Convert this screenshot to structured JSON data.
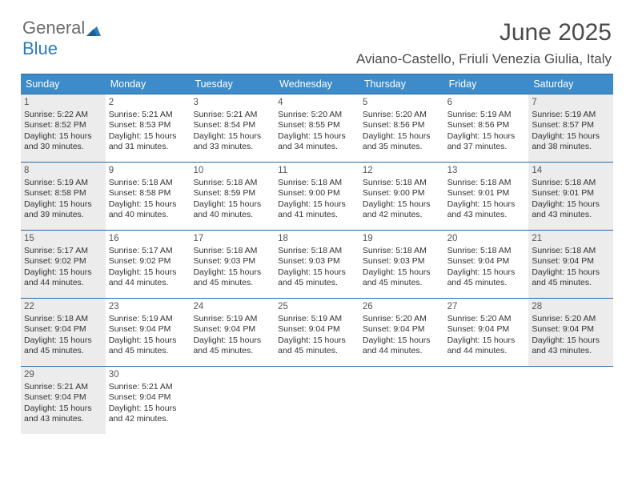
{
  "logo": {
    "text1": "General",
    "text2": "Blue"
  },
  "title": "June 2025",
  "subtitle": "Aviano-Castello, Friuli Venezia Giulia, Italy",
  "colors": {
    "header_bg": "#3d8bc8",
    "header_border": "#2a6aa0",
    "shaded_bg": "#ececec",
    "text_dark": "#333333",
    "title_color": "#4a4a4a",
    "logo_gray": "#6c6c6c",
    "logo_blue": "#2b7bbf"
  },
  "day_headers": [
    "Sunday",
    "Monday",
    "Tuesday",
    "Wednesday",
    "Thursday",
    "Friday",
    "Saturday"
  ],
  "weeks": [
    [
      {
        "n": "1",
        "shaded": true,
        "sr": "5:22 AM",
        "ss": "8:52 PM",
        "dl": "15 hours and 30 minutes."
      },
      {
        "n": "2",
        "shaded": false,
        "sr": "5:21 AM",
        "ss": "8:53 PM",
        "dl": "15 hours and 31 minutes."
      },
      {
        "n": "3",
        "shaded": false,
        "sr": "5:21 AM",
        "ss": "8:54 PM",
        "dl": "15 hours and 33 minutes."
      },
      {
        "n": "4",
        "shaded": false,
        "sr": "5:20 AM",
        "ss": "8:55 PM",
        "dl": "15 hours and 34 minutes."
      },
      {
        "n": "5",
        "shaded": false,
        "sr": "5:20 AM",
        "ss": "8:56 PM",
        "dl": "15 hours and 35 minutes."
      },
      {
        "n": "6",
        "shaded": false,
        "sr": "5:19 AM",
        "ss": "8:56 PM",
        "dl": "15 hours and 37 minutes."
      },
      {
        "n": "7",
        "shaded": true,
        "sr": "5:19 AM",
        "ss": "8:57 PM",
        "dl": "15 hours and 38 minutes."
      }
    ],
    [
      {
        "n": "8",
        "shaded": true,
        "sr": "5:19 AM",
        "ss": "8:58 PM",
        "dl": "15 hours and 39 minutes."
      },
      {
        "n": "9",
        "shaded": false,
        "sr": "5:18 AM",
        "ss": "8:58 PM",
        "dl": "15 hours and 40 minutes."
      },
      {
        "n": "10",
        "shaded": false,
        "sr": "5:18 AM",
        "ss": "8:59 PM",
        "dl": "15 hours and 40 minutes."
      },
      {
        "n": "11",
        "shaded": false,
        "sr": "5:18 AM",
        "ss": "9:00 PM",
        "dl": "15 hours and 41 minutes."
      },
      {
        "n": "12",
        "shaded": false,
        "sr": "5:18 AM",
        "ss": "9:00 PM",
        "dl": "15 hours and 42 minutes."
      },
      {
        "n": "13",
        "shaded": false,
        "sr": "5:18 AM",
        "ss": "9:01 PM",
        "dl": "15 hours and 43 minutes."
      },
      {
        "n": "14",
        "shaded": true,
        "sr": "5:18 AM",
        "ss": "9:01 PM",
        "dl": "15 hours and 43 minutes."
      }
    ],
    [
      {
        "n": "15",
        "shaded": true,
        "sr": "5:17 AM",
        "ss": "9:02 PM",
        "dl": "15 hours and 44 minutes."
      },
      {
        "n": "16",
        "shaded": false,
        "sr": "5:17 AM",
        "ss": "9:02 PM",
        "dl": "15 hours and 44 minutes."
      },
      {
        "n": "17",
        "shaded": false,
        "sr": "5:18 AM",
        "ss": "9:03 PM",
        "dl": "15 hours and 45 minutes."
      },
      {
        "n": "18",
        "shaded": false,
        "sr": "5:18 AM",
        "ss": "9:03 PM",
        "dl": "15 hours and 45 minutes."
      },
      {
        "n": "19",
        "shaded": false,
        "sr": "5:18 AM",
        "ss": "9:03 PM",
        "dl": "15 hours and 45 minutes."
      },
      {
        "n": "20",
        "shaded": false,
        "sr": "5:18 AM",
        "ss": "9:04 PM",
        "dl": "15 hours and 45 minutes."
      },
      {
        "n": "21",
        "shaded": true,
        "sr": "5:18 AM",
        "ss": "9:04 PM",
        "dl": "15 hours and 45 minutes."
      }
    ],
    [
      {
        "n": "22",
        "shaded": true,
        "sr": "5:18 AM",
        "ss": "9:04 PM",
        "dl": "15 hours and 45 minutes."
      },
      {
        "n": "23",
        "shaded": false,
        "sr": "5:19 AM",
        "ss": "9:04 PM",
        "dl": "15 hours and 45 minutes."
      },
      {
        "n": "24",
        "shaded": false,
        "sr": "5:19 AM",
        "ss": "9:04 PM",
        "dl": "15 hours and 45 minutes."
      },
      {
        "n": "25",
        "shaded": false,
        "sr": "5:19 AM",
        "ss": "9:04 PM",
        "dl": "15 hours and 45 minutes."
      },
      {
        "n": "26",
        "shaded": false,
        "sr": "5:20 AM",
        "ss": "9:04 PM",
        "dl": "15 hours and 44 minutes."
      },
      {
        "n": "27",
        "shaded": false,
        "sr": "5:20 AM",
        "ss": "9:04 PM",
        "dl": "15 hours and 44 minutes."
      },
      {
        "n": "28",
        "shaded": true,
        "sr": "5:20 AM",
        "ss": "9:04 PM",
        "dl": "15 hours and 43 minutes."
      }
    ],
    [
      {
        "n": "29",
        "shaded": true,
        "sr": "5:21 AM",
        "ss": "9:04 PM",
        "dl": "15 hours and 43 minutes."
      },
      {
        "n": "30",
        "shaded": false,
        "sr": "5:21 AM",
        "ss": "9:04 PM",
        "dl": "15 hours and 42 minutes."
      },
      {
        "n": "",
        "shaded": false
      },
      {
        "n": "",
        "shaded": false
      },
      {
        "n": "",
        "shaded": false
      },
      {
        "n": "",
        "shaded": false
      },
      {
        "n": "",
        "shaded": false
      }
    ]
  ],
  "labels": {
    "sunrise_prefix": "Sunrise: ",
    "sunset_prefix": "Sunset: ",
    "daylight_prefix": "Daylight: "
  }
}
